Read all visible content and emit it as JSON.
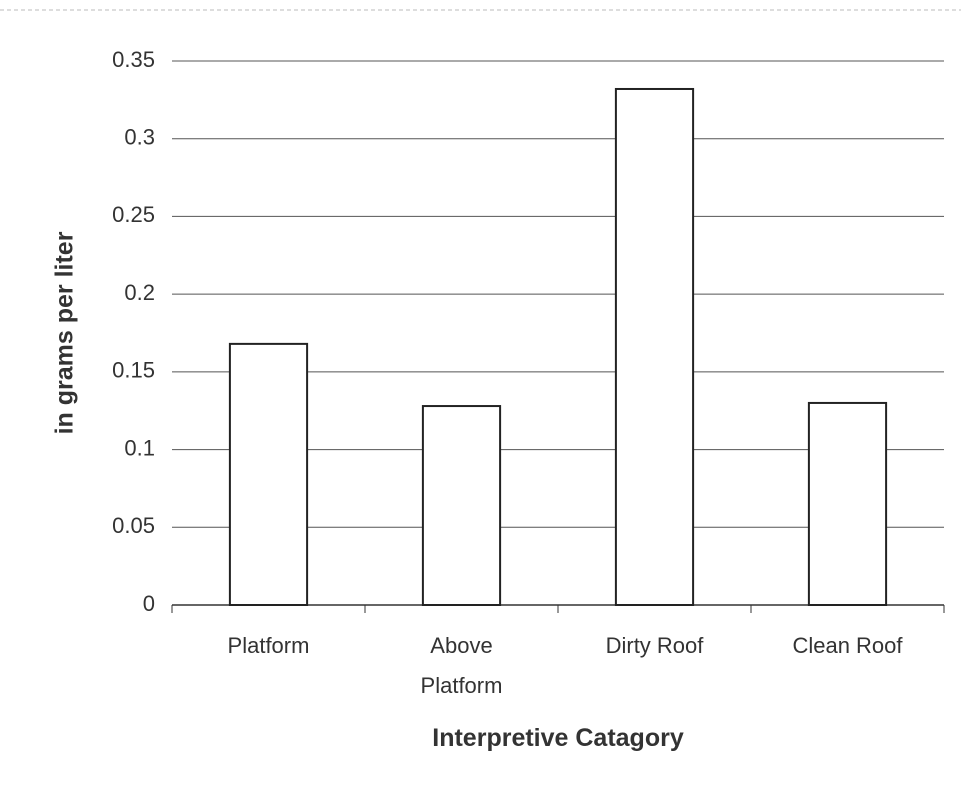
{
  "chart_data": {
    "type": "bar",
    "x_label": "Interpretive Catagory",
    "y_label": "in grams per liter",
    "categories": [
      "Platform",
      "Above Platform",
      "Dirty Roof",
      "Clean Roof"
    ],
    "values": [
      0.168,
      0.128,
      0.332,
      0.13
    ],
    "color": "#ffffff",
    "ylim": [
      0,
      0.35
    ],
    "yticks": [
      0,
      0.05,
      0.1,
      0.15,
      0.2,
      0.25,
      0.3,
      0.35
    ],
    "grid": true
  }
}
